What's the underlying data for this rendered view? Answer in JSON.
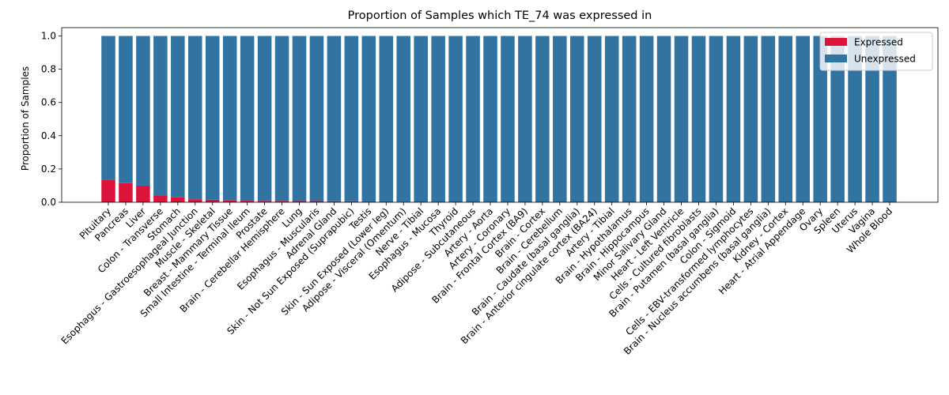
{
  "chart_data": {
    "type": "bar",
    "stacked": true,
    "title": "Proportion of Samples which TE_74 was expressed in",
    "xlabel": "",
    "ylabel": "Proportion of Samples",
    "ylim": [
      0,
      1.05
    ],
    "yticks": [
      "0.0",
      "0.2",
      "0.4",
      "0.6",
      "0.8",
      "1.0"
    ],
    "ytick_values": [
      0,
      0.2,
      0.4,
      0.6,
      0.8,
      1.0
    ],
    "legend_position": "top-right",
    "grid": false,
    "categories": [
      "Pituitary",
      "Pancreas",
      "Liver",
      "Colon - Transverse",
      "Stomach",
      "Esophagus - Gastroesophageal Junction",
      "Muscle - Skeletal",
      "Breast - Mammary Tissue",
      "Small Intestine - Terminal Ileum",
      "Prostate",
      "Brain - Cerebellar Hemisphere",
      "Lung",
      "Esophagus - Muscularis",
      "Adrenal Gland",
      "Skin - Not Sun Exposed (Suprapubic)",
      "Testis",
      "Skin - Sun Exposed (Lower leg)",
      "Adipose - Visceral (Omentum)",
      "Nerve - Tibial",
      "Esophagus - Mucosa",
      "Thyroid",
      "Adipose - Subcutaneous",
      "Artery - Aorta",
      "Artery - Coronary",
      "Brain - Frontal Cortex (BA9)",
      "Brain - Cortex",
      "Brain - Cerebellum",
      "Brain - Caudate (basal ganglia)",
      "Brain - Anterior cingulate cortex (BA24)",
      "Artery - Tibial",
      "Brain - Hypothalamus",
      "Brain - Hippocampus",
      "Minor Salivary Gland",
      "Heart - Left Ventricle",
      "Cells - Cultured fibroblasts",
      "Brain - Putamen (basal ganglia)",
      "Colon - Sigmoid",
      "Cells - EBV-transformed lymphocytes",
      "Brain - Nucleus accumbens (basal ganglia)",
      "Kidney - Cortex",
      "Heart - Atrial Appendage",
      "Ovary",
      "Spleen",
      "Uterus",
      "Vagina",
      "Whole Blood"
    ],
    "series": [
      {
        "name": "Expressed",
        "color": "#dc143c",
        "values": [
          0.135,
          0.115,
          0.1,
          0.04,
          0.03,
          0.018,
          0.015,
          0.01,
          0.009,
          0.008,
          0.008,
          0.007,
          0.007,
          0.006,
          0.006,
          0.005,
          0.005,
          0.004,
          0,
          0,
          0,
          0,
          0,
          0,
          0,
          0,
          0,
          0,
          0,
          0,
          0,
          0,
          0,
          0,
          0,
          0,
          0,
          0,
          0,
          0,
          0,
          0,
          0,
          0,
          0,
          0
        ]
      },
      {
        "name": "Unexpressed",
        "color": "#3274a1",
        "values": [
          0.865,
          0.885,
          0.9,
          0.96,
          0.97,
          0.982,
          0.985,
          0.99,
          0.991,
          0.992,
          0.992,
          0.993,
          0.993,
          0.994,
          0.994,
          0.995,
          0.995,
          0.996,
          1,
          1,
          1,
          1,
          1,
          1,
          1,
          1,
          1,
          1,
          1,
          1,
          1,
          1,
          1,
          1,
          1,
          1,
          1,
          1,
          1,
          1,
          1,
          1,
          1,
          1,
          1,
          1
        ]
      }
    ]
  }
}
